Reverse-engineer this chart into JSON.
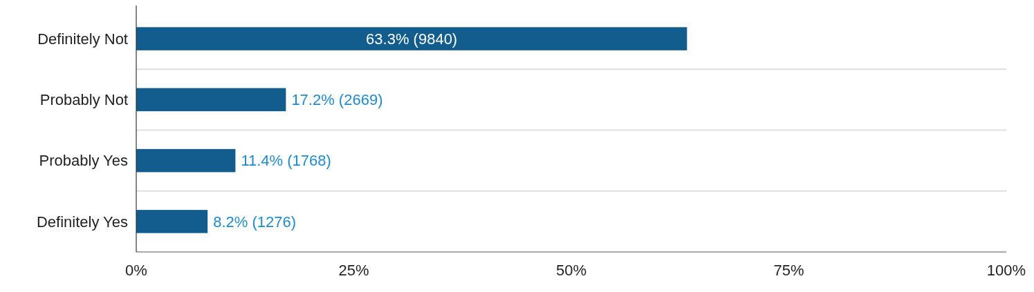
{
  "chart_data": {
    "type": "bar",
    "orientation": "horizontal",
    "categories": [
      "Definitely Not",
      "Probably Not",
      "Probably Yes",
      "Definitely Yes"
    ],
    "values": [
      63.3,
      17.2,
      11.4,
      8.2
    ],
    "value_labels": [
      "63.3% (9840)",
      "17.2% (2669)",
      "11.4% (1768)",
      "8.2% (1276)"
    ],
    "color": "#135d8e",
    "xlim": [
      0,
      100
    ],
    "xticks": [
      {
        "value": 0,
        "label": "0%"
      },
      {
        "value": 25,
        "label": "25%"
      },
      {
        "value": 50,
        "label": "50%"
      },
      {
        "value": 75,
        "label": "75%"
      },
      {
        "value": 100,
        "label": "100%"
      }
    ],
    "grid": "y"
  }
}
